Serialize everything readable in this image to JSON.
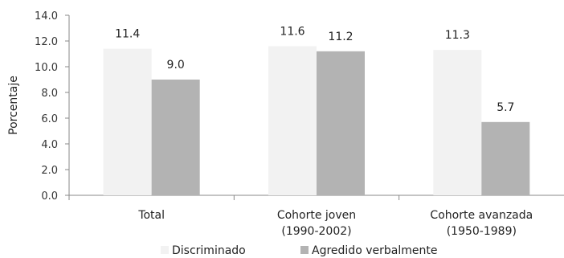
{
  "chart_data": {
    "type": "bar",
    "ylabel": "Porcentaje",
    "ylim": [
      0,
      14
    ],
    "yticks": [
      "0.0",
      "2.0",
      "4.0",
      "6.0",
      "8.0",
      "10.0",
      "12.0",
      "14.0"
    ],
    "categories": [
      [
        "Total"
      ],
      [
        "Cohorte joven",
        "(1990-2002)"
      ],
      [
        "Cohorte avanzada",
        "(1950-1989)"
      ]
    ],
    "series": [
      {
        "name": "Discriminado",
        "values": [
          11.4,
          11.6,
          11.3
        ],
        "labels": [
          "11.4",
          "11.6",
          "11.3"
        ],
        "color": "#f2f2f2"
      },
      {
        "name": "Agredido verbalmente",
        "values": [
          9.0,
          11.2,
          5.7
        ],
        "labels": [
          "9.0",
          "11.2",
          "5.7"
        ],
        "color": "#b3b3b3"
      }
    ],
    "grid": false,
    "legend_position": "bottom"
  }
}
